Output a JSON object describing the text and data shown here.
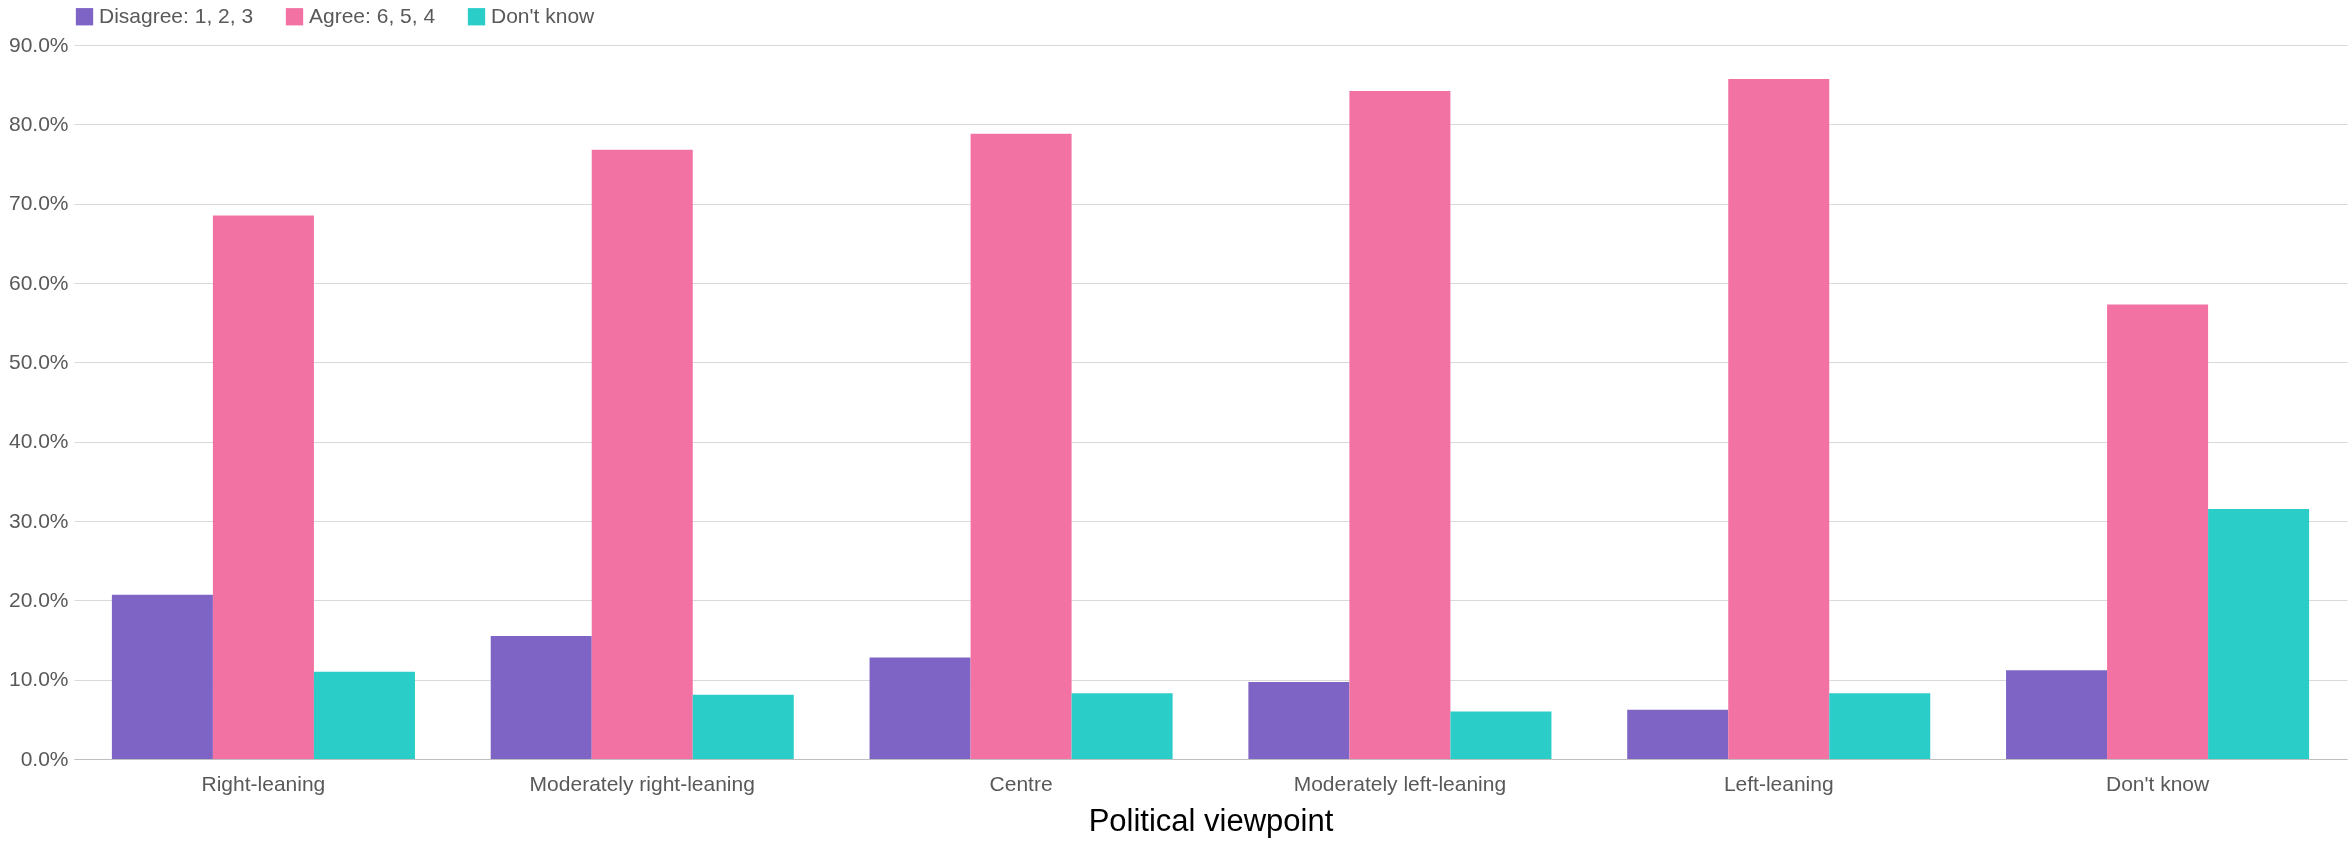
{
  "chart_data": {
    "type": "bar",
    "xlabel": "Political viewpoint",
    "categories": [
      "Right-leaning",
      "Moderately right-leaning",
      "Centre",
      "Moderately left-leaning",
      "Left-leaning",
      "Don't know"
    ],
    "series": [
      {
        "name": "Disagree: 1, 2, 3",
        "color": "#7e64c4",
        "values": [
          20.7,
          15.5,
          12.8,
          9.7,
          6.2,
          11.2
        ]
      },
      {
        "name": "Agree: 6, 5, 4",
        "color": "#f273a3",
        "values": [
          68.5,
          76.8,
          78.8,
          84.2,
          85.7,
          57.3
        ]
      },
      {
        "name": "Don't know",
        "color": "#2bcdc9",
        "values": [
          11.0,
          8.1,
          8.3,
          6.0,
          8.3,
          31.5
        ]
      }
    ],
    "ylim": [
      0,
      90
    ],
    "yticks": [
      {
        "value": 0,
        "label": "0.0%"
      },
      {
        "value": 10,
        "label": "10.0%"
      },
      {
        "value": 20,
        "label": "20.0%"
      },
      {
        "value": 30,
        "label": "30.0%"
      },
      {
        "value": 40,
        "label": "40.0%"
      },
      {
        "value": 50,
        "label": "50.0%"
      },
      {
        "value": 60,
        "label": "60.0%"
      },
      {
        "value": 70,
        "label": "70.0%"
      },
      {
        "value": 80,
        "label": "80.0%"
      },
      {
        "value": 90,
        "label": "90.0%"
      }
    ],
    "grid": "y",
    "legend": "top"
  }
}
